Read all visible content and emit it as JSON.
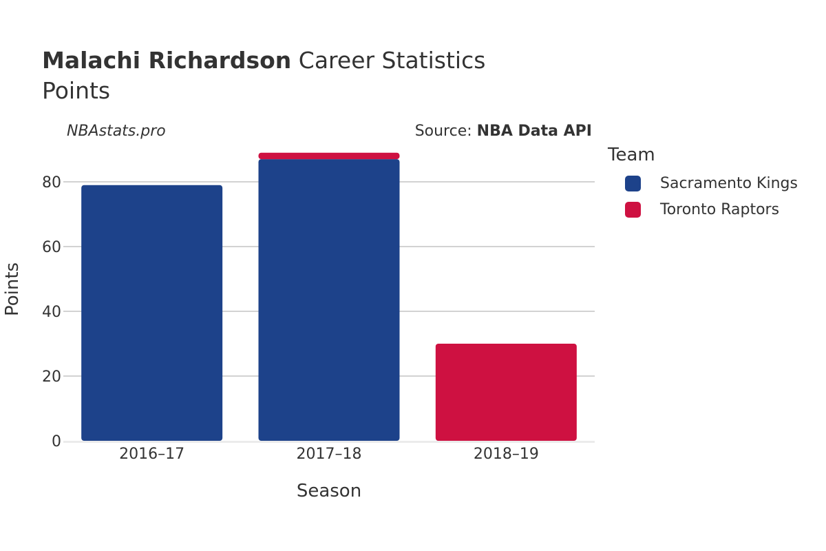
{
  "header": {
    "title_bold": "Malachi Richardson",
    "title_rest": " Career Statistics",
    "subtitle": "Points",
    "site": "NBAstats.pro",
    "source_prefix": "Source: ",
    "source_name": "NBA Data API"
  },
  "legend": {
    "title": "Team",
    "items": [
      {
        "label": "Sacramento Kings",
        "color": "#1d428a"
      },
      {
        "label": "Toronto Raptors",
        "color": "#ce1141"
      }
    ]
  },
  "chart_data": {
    "type": "bar",
    "stacked": true,
    "categories": [
      "2016–17",
      "2017–18",
      "2018–19"
    ],
    "series": [
      {
        "name": "Sacramento Kings",
        "color": "#1d428a",
        "values": [
          79,
          87,
          0
        ]
      },
      {
        "name": "Toronto Raptors",
        "color": "#ce1141",
        "values": [
          0,
          2,
          30
        ]
      }
    ],
    "xlabel": "Season",
    "ylabel": "Points",
    "ylim": [
      0,
      90
    ],
    "yticks": [
      0,
      20,
      40,
      60,
      80
    ],
    "grid": true,
    "legend_position": "right"
  }
}
